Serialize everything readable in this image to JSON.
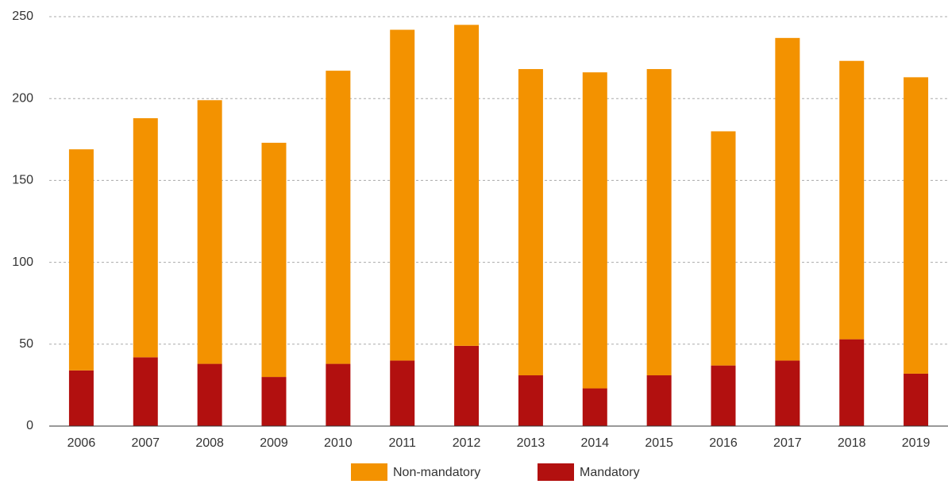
{
  "chart_data": {
    "type": "stacked_bar",
    "categories": [
      "2006",
      "2007",
      "2008",
      "2009",
      "2010",
      "2011",
      "2012",
      "2013",
      "2014",
      "2015",
      "2016",
      "2017",
      "2018",
      "2019"
    ],
    "series": [
      {
        "name": "Non-mandatory",
        "color": "#f39200",
        "values": [
          135,
          146,
          161,
          143,
          179,
          202,
          196,
          187,
          193,
          187,
          143,
          197,
          170,
          181
        ]
      },
      {
        "name": "Mandatory",
        "color": "#b2100f",
        "values": [
          34,
          42,
          38,
          30,
          38,
          40,
          49,
          31,
          23,
          31,
          37,
          40,
          53,
          32
        ]
      }
    ],
    "ylim": [
      0,
      250
    ],
    "yticks": [
      0,
      50,
      100,
      150,
      200,
      250
    ],
    "grid": true,
    "legend": "bottom"
  }
}
